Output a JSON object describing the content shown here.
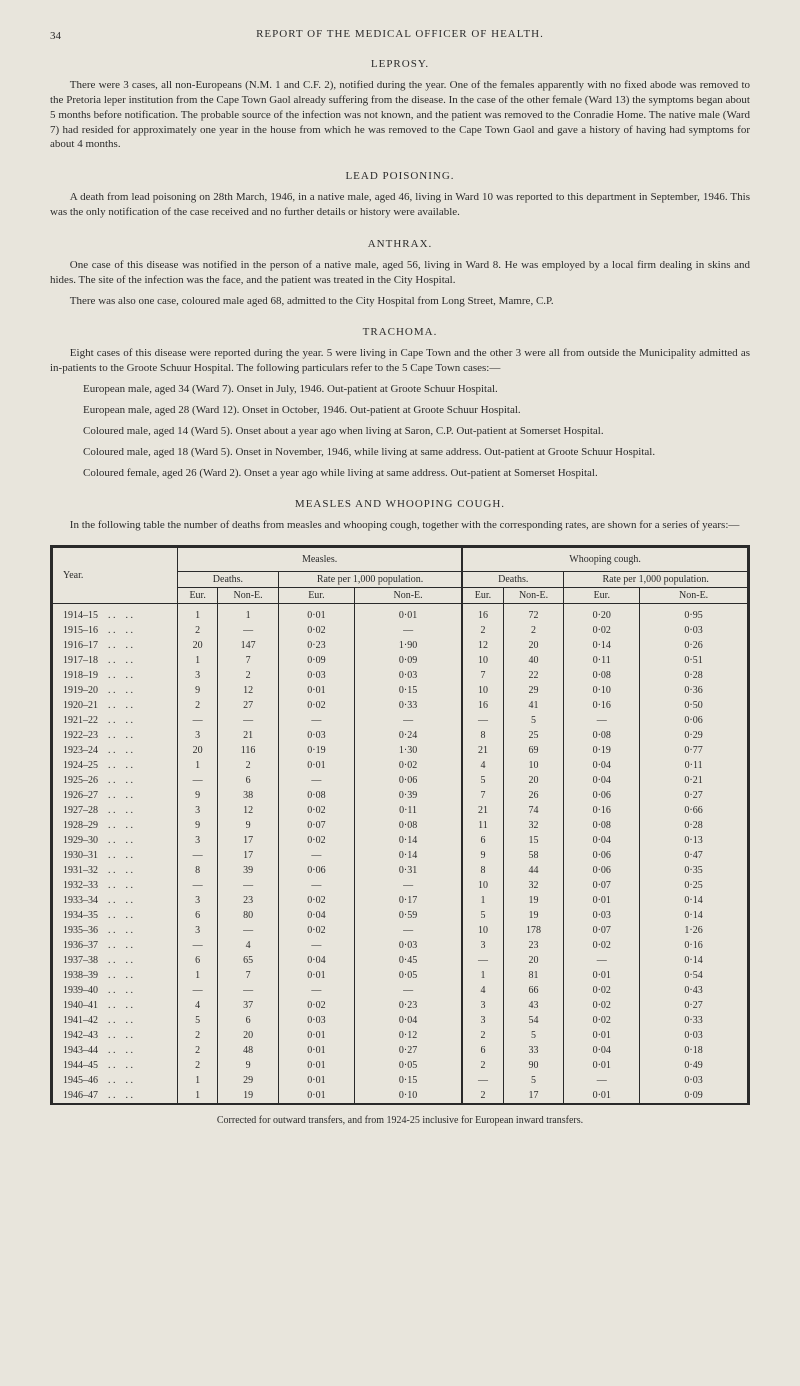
{
  "page_number": "34",
  "running_head": "REPORT OF THE MEDICAL OFFICER OF HEALTH.",
  "sections": {
    "leprosy": {
      "title": "LEPROSY.",
      "para": "There were 3 cases, all non-Europeans (N.M. 1 and C.F. 2), notified during the year. One of the females apparently with no fixed abode was removed to the Pretoria leper institution from the Cape Town Gaol already suffering from the disease. In the case of the other female (Ward 13) the symptoms began about 5 months before notification. The probable source of the infection was not known, and the patient was removed to the Conradie Home. The native male (Ward 7) had resided for approximately one year in the house from which he was removed to the Cape Town Gaol and gave a history of having had symptoms for about 4 months."
    },
    "lead": {
      "title": "LEAD POISONING.",
      "para": "A death from lead poisoning on 28th March, 1946, in a native male, aged 46, living in Ward 10 was reported to this department in September, 1946. This was the only notification of the case received and no further details or history were available."
    },
    "anthrax": {
      "title": "ANTHRAX.",
      "p1": "One case of this disease was notified in the person of a native male, aged 56, living in Ward 8. He was employed by a local firm dealing in skins and hides. The site of the infection was the face, and the patient was treated in the City Hospital.",
      "p2": "There was also one case, coloured male aged 68, admitted to the City Hospital from Long Street, Mamre, C.P."
    },
    "trachoma": {
      "title": "TRACHOMA.",
      "p1": "Eight cases of this disease were reported during the year. 5 were living in Cape Town and the other 3 were all from outside the Municipality admitted as in-patients to the Groote Schuur Hospital. The following particulars refer to the 5 Cape Town cases:—",
      "items": [
        "European male, aged 34 (Ward 7). Onset in July, 1946. Out-patient at Groote Schuur Hospital.",
        "European male, aged 28 (Ward 12). Onset in October, 1946. Out-patient at Groote Schuur Hospital.",
        "Coloured male, aged 14 (Ward 5). Onset about a year ago when living at Saron, C.P. Out-patient at Somerset Hospital.",
        "Coloured male, aged 18 (Ward 5). Onset in November, 1946, while living at same address. Out-patient at Groote Schuur Hospital.",
        "Coloured female, aged 26 (Ward 2). Onset a year ago while living at same address. Out-patient at Somerset Hospital."
      ]
    },
    "measles": {
      "title": "MEASLES AND WHOOPING COUGH.",
      "intro": "In the following table the number of deaths from measles and whooping cough, together with the corresponding rates, are shown for a series of years:—"
    }
  },
  "table": {
    "headers": {
      "year": "Year.",
      "measles": "Measles.",
      "whooping": "Whooping cough.",
      "deaths": "Deaths.",
      "rate": "Rate per 1,000 population.",
      "eur": "Eur.",
      "none": "Non-E."
    },
    "rows": [
      {
        "y": "1914–15",
        "m": [
          "1",
          "1",
          "0·01",
          "0·01"
        ],
        "w": [
          "16",
          "72",
          "0·20",
          "0·95"
        ]
      },
      {
        "y": "1915–16",
        "m": [
          "2",
          "—",
          "0·02",
          "—"
        ],
        "w": [
          "2",
          "2",
          "0·02",
          "0·03"
        ]
      },
      {
        "y": "1916–17",
        "m": [
          "20",
          "147",
          "0·23",
          "1·90"
        ],
        "w": [
          "12",
          "20",
          "0·14",
          "0·26"
        ]
      },
      {
        "y": "1917–18",
        "m": [
          "1",
          "7",
          "0·09",
          "0·09"
        ],
        "w": [
          "10",
          "40",
          "0·11",
          "0·51"
        ]
      },
      {
        "y": "1918–19",
        "m": [
          "3",
          "2",
          "0·03",
          "0·03"
        ],
        "w": [
          "7",
          "22",
          "0·08",
          "0·28"
        ]
      },
      {
        "y": "1919–20",
        "m": [
          "9",
          "12",
          "0·01",
          "0·15"
        ],
        "w": [
          "10",
          "29",
          "0·10",
          "0·36"
        ]
      },
      {
        "y": "1920–21",
        "m": [
          "2",
          "27",
          "0·02",
          "0·33"
        ],
        "w": [
          "16",
          "41",
          "0·16",
          "0·50"
        ]
      },
      {
        "y": "1921–22",
        "m": [
          "—",
          "—",
          "—",
          "—"
        ],
        "w": [
          "—",
          "5",
          "—",
          "0·06"
        ]
      },
      {
        "y": "1922–23",
        "m": [
          "3",
          "21",
          "0·03",
          "0·24"
        ],
        "w": [
          "8",
          "25",
          "0·08",
          "0·29"
        ]
      },
      {
        "y": "1923–24",
        "m": [
          "20",
          "116",
          "0·19",
          "1·30"
        ],
        "w": [
          "21",
          "69",
          "0·19",
          "0·77"
        ]
      },
      {
        "y": "1924–25",
        "m": [
          "1",
          "2",
          "0·01",
          "0·02"
        ],
        "w": [
          "4",
          "10",
          "0·04",
          "0·11"
        ]
      },
      {
        "y": "1925–26",
        "m": [
          "—",
          "6",
          "—",
          "0·06"
        ],
        "w": [
          "5",
          "20",
          "0·04",
          "0·21"
        ]
      },
      {
        "y": "1926–27",
        "m": [
          "9",
          "38",
          "0·08",
          "0·39"
        ],
        "w": [
          "7",
          "26",
          "0·06",
          "0·27"
        ]
      },
      {
        "y": "1927–28",
        "m": [
          "3",
          "12",
          "0·02",
          "0·11"
        ],
        "w": [
          "21",
          "74",
          "0·16",
          "0·66"
        ]
      },
      {
        "y": "1928–29",
        "m": [
          "9",
          "9",
          "0·07",
          "0·08"
        ],
        "w": [
          "11",
          "32",
          "0·08",
          "0·28"
        ]
      },
      {
        "y": "1929–30",
        "m": [
          "3",
          "17",
          "0·02",
          "0·14"
        ],
        "w": [
          "6",
          "15",
          "0·04",
          "0·13"
        ]
      },
      {
        "y": "1930–31",
        "m": [
          "—",
          "17",
          "—",
          "0·14"
        ],
        "w": [
          "9",
          "58",
          "0·06",
          "0·47"
        ]
      },
      {
        "y": "1931–32",
        "m": [
          "8",
          "39",
          "0·06",
          "0·31"
        ],
        "w": [
          "8",
          "44",
          "0·06",
          "0·35"
        ]
      },
      {
        "y": "1932–33",
        "m": [
          "—",
          "—",
          "—",
          "—"
        ],
        "w": [
          "10",
          "32",
          "0·07",
          "0·25"
        ]
      },
      {
        "y": "1933–34",
        "m": [
          "3",
          "23",
          "0·02",
          "0·17"
        ],
        "w": [
          "1",
          "19",
          "0·01",
          "0·14"
        ]
      },
      {
        "y": "1934–35",
        "m": [
          "6",
          "80",
          "0·04",
          "0·59"
        ],
        "w": [
          "5",
          "19",
          "0·03",
          "0·14"
        ]
      },
      {
        "y": "1935–36",
        "m": [
          "3",
          "—",
          "0·02",
          "—"
        ],
        "w": [
          "10",
          "178",
          "0·07",
          "1·26"
        ]
      },
      {
        "y": "1936–37",
        "m": [
          "—",
          "4",
          "—",
          "0·03"
        ],
        "w": [
          "3",
          "23",
          "0·02",
          "0·16"
        ]
      },
      {
        "y": "1937–38",
        "m": [
          "6",
          "65",
          "0·04",
          "0·45"
        ],
        "w": [
          "—",
          "20",
          "—",
          "0·14"
        ]
      },
      {
        "y": "1938–39",
        "m": [
          "1",
          "7",
          "0·01",
          "0·05"
        ],
        "w": [
          "1",
          "81",
          "0·01",
          "0·54"
        ]
      },
      {
        "y": "1939–40",
        "m": [
          "—",
          "—",
          "—",
          "—"
        ],
        "w": [
          "4",
          "66",
          "0·02",
          "0·43"
        ]
      },
      {
        "y": "1940–41",
        "m": [
          "4",
          "37",
          "0·02",
          "0·23"
        ],
        "w": [
          "3",
          "43",
          "0·02",
          "0·27"
        ]
      },
      {
        "y": "1941–42",
        "m": [
          "5",
          "6",
          "0·03",
          "0·04"
        ],
        "w": [
          "3",
          "54",
          "0·02",
          "0·33"
        ]
      },
      {
        "y": "1942–43",
        "m": [
          "2",
          "20",
          "0·01",
          "0·12"
        ],
        "w": [
          "2",
          "5",
          "0·01",
          "0·03"
        ]
      },
      {
        "y": "1943–44",
        "m": [
          "2",
          "48",
          "0·01",
          "0·27"
        ],
        "w": [
          "6",
          "33",
          "0·04",
          "0·18"
        ]
      },
      {
        "y": "1944–45",
        "m": [
          "2",
          "9",
          "0·01",
          "0·05"
        ],
        "w": [
          "2",
          "90",
          "0·01",
          "0·49"
        ]
      },
      {
        "y": "1945–46",
        "m": [
          "1",
          "29",
          "0·01",
          "0·15"
        ],
        "w": [
          "—",
          "5",
          "—",
          "0·03"
        ]
      },
      {
        "y": "1946–47",
        "m": [
          "1",
          "19",
          "0·01",
          "0·10"
        ],
        "w": [
          "2",
          "17",
          "0·01",
          "0·09"
        ]
      }
    ]
  },
  "footnote": "Corrected for outward transfers, and from 1924-25 inclusive for European inward transfers."
}
